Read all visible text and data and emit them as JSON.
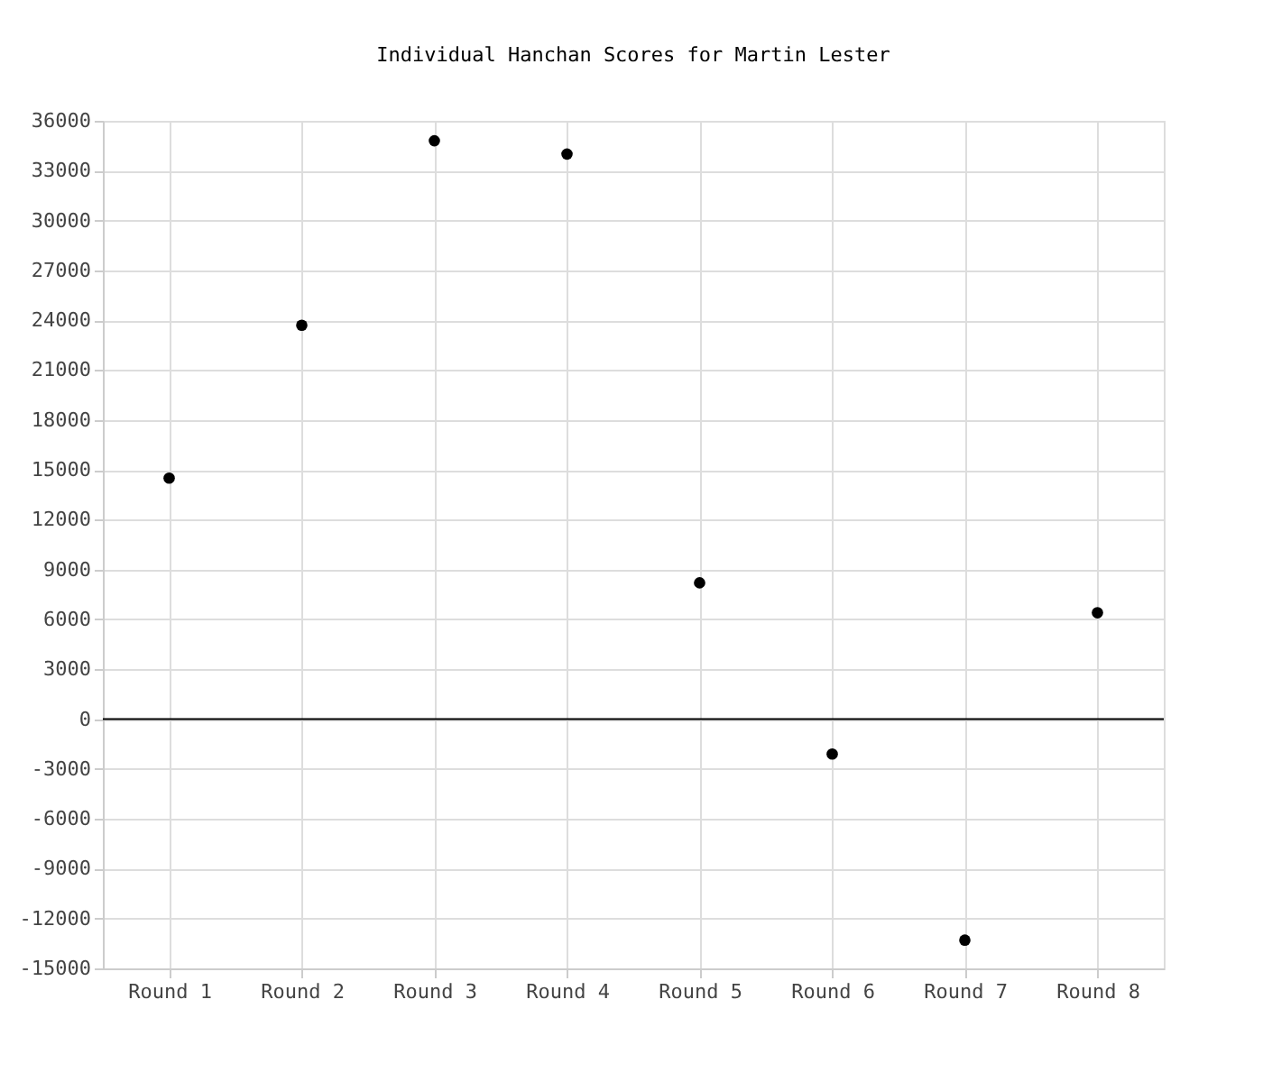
{
  "chart_data": {
    "type": "scatter",
    "title": "Individual Hanchan Scores for Martin Lester",
    "categories": [
      "Round 1",
      "Round 2",
      "Round 3",
      "Round 4",
      "Round 5",
      "Round 6",
      "Round 7",
      "Round 8"
    ],
    "series": [
      {
        "color": "#000000",
        "values": [
          14500,
          23700,
          34800,
          34000,
          8200,
          -2100,
          -13300,
          6400
        ]
      }
    ],
    "ylim": [
      -15000,
      36000
    ],
    "yticks": [
      -15000,
      -12000,
      -9000,
      -6000,
      -3000,
      0,
      3000,
      6000,
      9000,
      12000,
      15000,
      18000,
      21000,
      24000,
      27000,
      30000,
      33000,
      36000
    ],
    "grid": true,
    "marker": "circle",
    "legend": false,
    "ref_lines": [
      {
        "axis": "y",
        "value": 0,
        "color": "#000000"
      }
    ]
  }
}
